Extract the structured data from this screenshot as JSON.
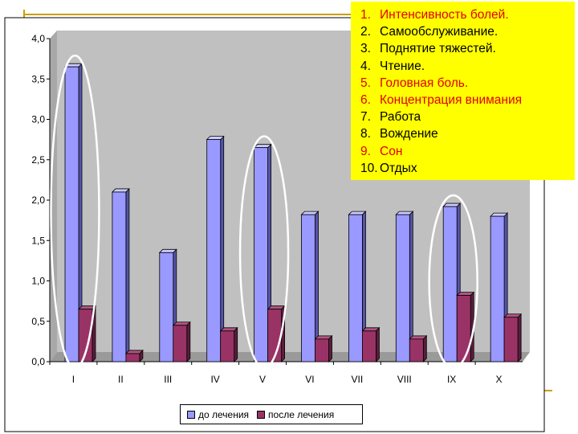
{
  "chart_data": {
    "type": "bar",
    "categories": [
      "I",
      "II",
      "III",
      "IV",
      "V",
      "VI",
      "VII",
      "VIII",
      "IX",
      "X"
    ],
    "series": [
      {
        "name": "до лечения",
        "values": [
          3.65,
          2.1,
          1.35,
          2.75,
          2.65,
          1.82,
          1.82,
          1.82,
          1.92,
          1.8
        ],
        "color": "#9999ff"
      },
      {
        "name": "после лечения",
        "values": [
          0.65,
          0.1,
          0.45,
          0.38,
          0.65,
          0.28,
          0.38,
          0.28,
          0.82,
          0.55
        ],
        "color": "#993366"
      }
    ],
    "y_ticks": [
      "0,0",
      "0,5",
      "1,0",
      "1,5",
      "2,0",
      "2,5",
      "3,0",
      "3,5",
      "4,0"
    ],
    "ylim": [
      0,
      4
    ],
    "grid": false,
    "legend_position": "bottom"
  },
  "items_legend": [
    {
      "num": "1.",
      "text": "Интенсивность болей.",
      "color": "#e00000"
    },
    {
      "num": "2.",
      "text": "Самообслуживание.",
      "color": "#000000"
    },
    {
      "num": "3.",
      "text": "Поднятие тяжестей.",
      "color": "#000000"
    },
    {
      "num": "4.",
      "text": "Чтение.",
      "color": "#000000"
    },
    {
      "num": "5.",
      "text": "Головная боль.",
      "color": "#e00000"
    },
    {
      "num": "6.",
      "text": "Концентрация внимания",
      "color": "#e00000"
    },
    {
      "num": "7.",
      "text": "Работа",
      "color": "#000000"
    },
    {
      "num": "8.",
      "text": "Вождение",
      "color": "#000000"
    },
    {
      "num": "9.",
      "text": "Сон",
      "color": "#e00000"
    },
    {
      "num": "10.",
      "text": "Отдых",
      "color": "#000000"
    }
  ],
  "highlighted_categories": [
    "I",
    "V",
    "IX"
  ]
}
